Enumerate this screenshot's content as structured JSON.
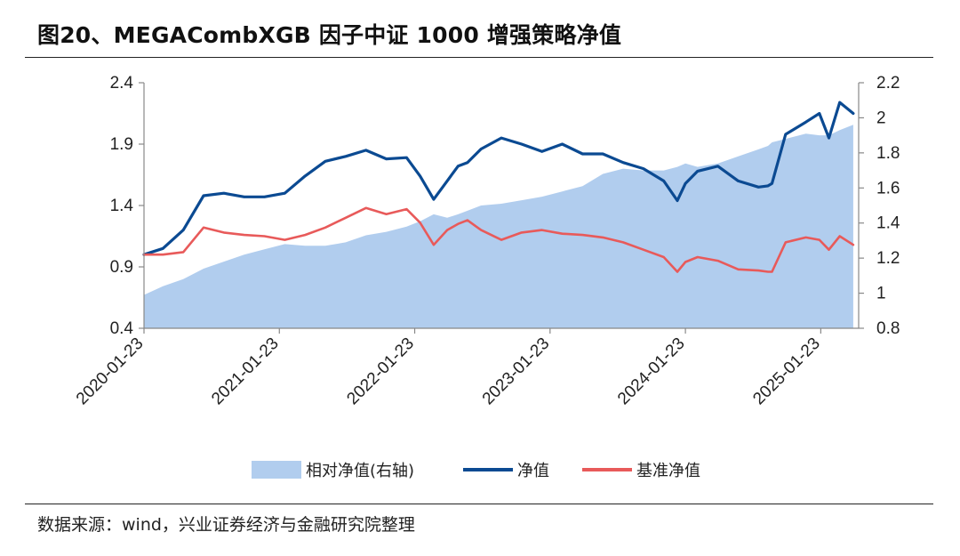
{
  "title": "图20、MEGACombXGB 因子中证 1000 增强策略净值",
  "source": "数据来源：wind，兴业证券经济与金融研究院整理",
  "chart_data": {
    "type": "line",
    "x_tick_labels": [
      "2020-01-23",
      "2021-01-23",
      "2022-01-23",
      "2023-01-23",
      "2024-01-23",
      "2025-01-23"
    ],
    "left_axis": {
      "ylim": [
        0.4,
        2.4
      ],
      "ticks": [
        "0.4",
        "0.9",
        "1.4",
        "1.9",
        "2.4"
      ]
    },
    "right_axis": {
      "ylim": [
        0.8,
        2.2
      ],
      "ticks": [
        "0.8",
        "1",
        "1.2",
        "1.4",
        "1.6",
        "1.8",
        "2",
        "2.2"
      ]
    },
    "colors": {
      "relative": "#b1cdee",
      "strategy": "#0b4a92",
      "benchmark": "#e85a5a"
    },
    "x": [
      2020.06,
      2020.2,
      2020.35,
      2020.5,
      2020.65,
      2020.8,
      2020.95,
      2021.1,
      2021.25,
      2021.4,
      2021.55,
      2021.7,
      2021.85,
      2022.0,
      2022.1,
      2022.2,
      2022.3,
      2022.38,
      2022.45,
      2022.55,
      2022.7,
      2022.85,
      2023.0,
      2023.15,
      2023.3,
      2023.45,
      2023.6,
      2023.75,
      2023.9,
      2024.0,
      2024.06,
      2024.15,
      2024.3,
      2024.45,
      2024.6,
      2024.67,
      2024.7,
      2024.8,
      2024.95,
      2025.05,
      2025.12,
      2025.2,
      2025.3
    ],
    "series": [
      {
        "name": "相对净值(右轴)",
        "axis": "right",
        "style": "area",
        "values": [
          0.99,
          1.04,
          1.08,
          1.14,
          1.18,
          1.22,
          1.25,
          1.28,
          1.27,
          1.27,
          1.29,
          1.33,
          1.35,
          1.38,
          1.41,
          1.45,
          1.43,
          1.45,
          1.47,
          1.5,
          1.51,
          1.53,
          1.55,
          1.58,
          1.61,
          1.68,
          1.71,
          1.7,
          1.7,
          1.72,
          1.74,
          1.72,
          1.74,
          1.78,
          1.82,
          1.84,
          1.86,
          1.88,
          1.91,
          1.9,
          1.9,
          1.93,
          1.96
        ]
      },
      {
        "name": "净值",
        "axis": "left",
        "style": "line",
        "values": [
          1.0,
          1.05,
          1.2,
          1.48,
          1.5,
          1.47,
          1.47,
          1.5,
          1.64,
          1.76,
          1.8,
          1.85,
          1.78,
          1.79,
          1.64,
          1.45,
          1.6,
          1.72,
          1.75,
          1.86,
          1.95,
          1.9,
          1.84,
          1.9,
          1.82,
          1.82,
          1.75,
          1.7,
          1.6,
          1.44,
          1.58,
          1.68,
          1.72,
          1.6,
          1.55,
          1.56,
          1.58,
          1.98,
          2.08,
          2.15,
          1.95,
          2.24,
          2.15
        ]
      },
      {
        "name": "基准净值",
        "axis": "left",
        "style": "line",
        "values": [
          1.0,
          1.0,
          1.02,
          1.22,
          1.18,
          1.16,
          1.15,
          1.12,
          1.16,
          1.22,
          1.3,
          1.38,
          1.33,
          1.37,
          1.26,
          1.08,
          1.2,
          1.25,
          1.28,
          1.2,
          1.12,
          1.18,
          1.2,
          1.17,
          1.16,
          1.14,
          1.1,
          1.04,
          0.98,
          0.86,
          0.94,
          0.98,
          0.95,
          0.88,
          0.87,
          0.86,
          0.86,
          1.1,
          1.14,
          1.12,
          1.04,
          1.15,
          1.08
        ]
      }
    ],
    "legend_position": "bottom"
  }
}
